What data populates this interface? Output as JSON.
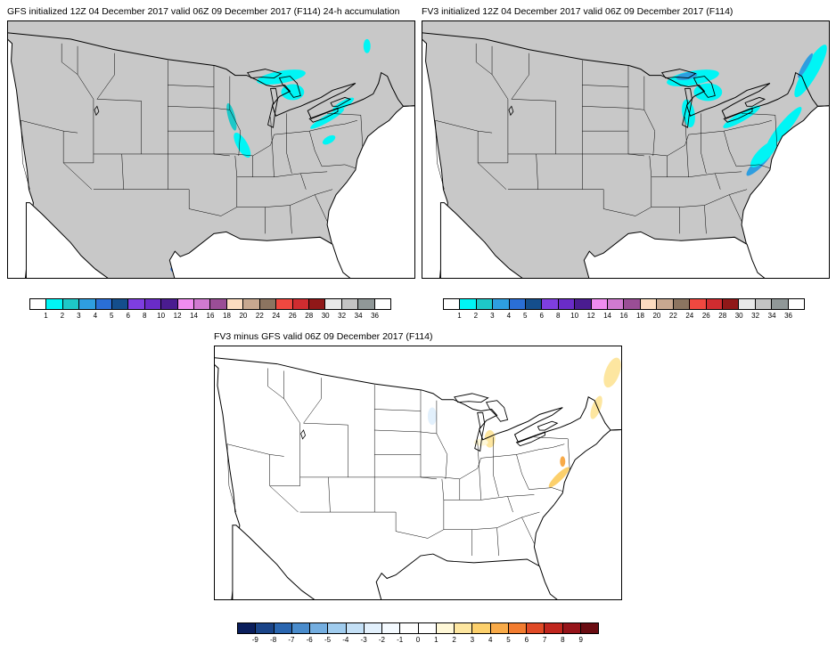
{
  "panels": {
    "gfs": {
      "title": "GFS initialized 12Z 04 December 2017 valid 06Z 09 December 2017 (F114) 24-h accumulation"
    },
    "fv3": {
      "title": "FV3 initialized 12Z 04 December 2017 valid 06Z 09 December 2017 (F114)"
    },
    "diff": {
      "title": "FV3 minus GFS valid 06Z 09 December 2017 (F114)"
    }
  },
  "colors": {
    "land": "#c8c8c8",
    "water": "#ffffff",
    "diff_land": "#ffffff",
    "border": "#000000"
  },
  "accum_colorbar": {
    "labels": [
      "1",
      "2",
      "3",
      "4",
      "5",
      "6",
      "8",
      "10",
      "12",
      "14",
      "16",
      "18",
      "20",
      "22",
      "24",
      "26",
      "28",
      "30",
      "32",
      "34",
      "36"
    ],
    "colors": [
      "#ffffff",
      "#00f5f5",
      "#1ec8c8",
      "#2e9ee0",
      "#2a6fd6",
      "#144e8c",
      "#7e3ee0",
      "#6a2cc8",
      "#4a1c90",
      "#f08cf0",
      "#d07ad0",
      "#9a4e96",
      "#fcdcc0",
      "#c8a890",
      "#8c7460",
      "#f04840",
      "#d02c30",
      "#901818",
      "#e8e8e8",
      "#c4c4c4",
      "#909898",
      "#ffffff"
    ]
  },
  "diff_colorbar": {
    "labels": [
      "-9",
      "-8",
      "-7",
      "-6",
      "-5",
      "-4",
      "-3",
      "-2",
      "-1",
      "0",
      "1",
      "2",
      "3",
      "4",
      "5",
      "6",
      "7",
      "8",
      "9"
    ],
    "colors": [
      "#0a1e5c",
      "#1a4488",
      "#2a66b0",
      "#4a8ccc",
      "#74aee0",
      "#a0ccee",
      "#c4e0f6",
      "#e2f0fc",
      "#f4faff",
      "#ffffff",
      "#ffffff",
      "#fff8d8",
      "#fde6a0",
      "#fcd06c",
      "#f8aa48",
      "#f27c30",
      "#e04a26",
      "#c0261e",
      "#96141a",
      "#6a0c12"
    ]
  }
}
